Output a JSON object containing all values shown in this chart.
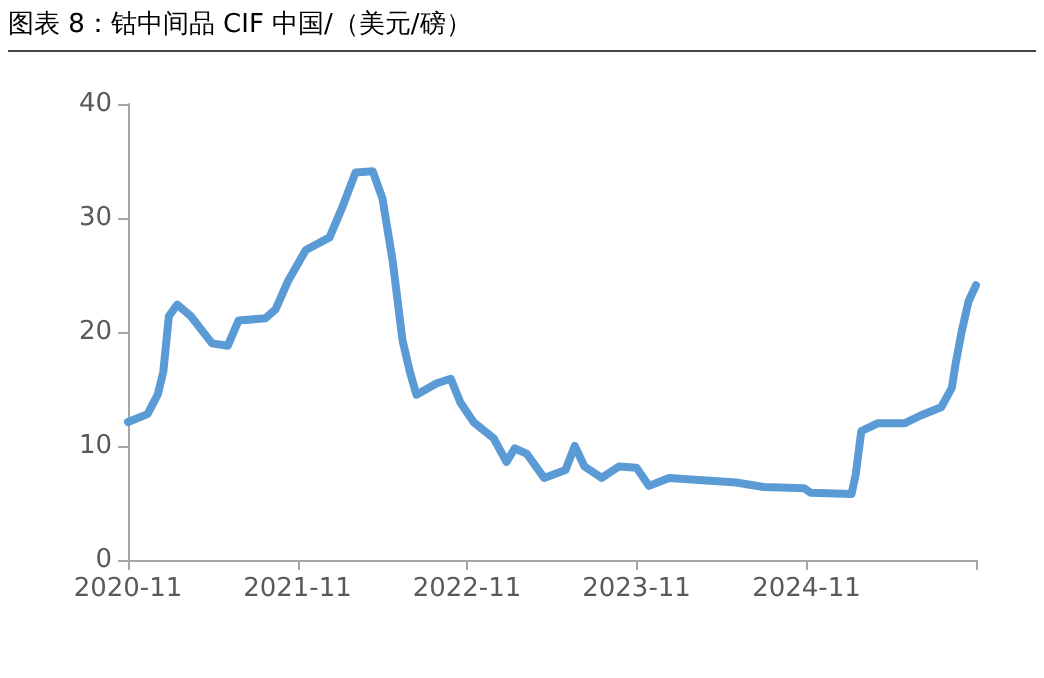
{
  "chart_data": {
    "type": "line",
    "title": "图表 8：钴中间品 CIF 中国/（美元/磅）",
    "x": [
      "2020-11-01",
      "2020-12-13",
      "2021-01-04",
      "2021-01-16",
      "2021-01-28",
      "2021-02-15",
      "2021-03-16",
      "2021-05-01",
      "2021-06-04",
      "2021-06-27",
      "2021-08-24",
      "2021-09-15",
      "2021-10-12",
      "2021-11-19",
      "2022-01-09",
      "2022-02-06",
      "2022-03-06",
      "2022-04-12",
      "2022-05-03",
      "2022-05-25",
      "2022-06-15",
      "2022-07-01",
      "2022-07-15",
      "2022-08-28",
      "2022-09-27",
      "2022-10-18",
      "2022-11-15",
      "2022-12-28",
      "2023-01-25",
      "2023-02-12",
      "2023-03-10",
      "2023-04-16",
      "2023-06-01",
      "2023-06-21",
      "2023-07-12",
      "2023-08-18",
      "2023-09-24",
      "2023-11-01",
      "2023-11-28",
      "2024-01-10",
      "2024-03-22",
      "2024-06-03",
      "2024-08-01",
      "2024-10-27",
      "2024-11-10",
      "2025-02-06",
      "2025-02-15",
      "2025-02-27",
      "2025-04-04",
      "2025-06-01",
      "2025-07-06",
      "2025-08-18",
      "2025-09-10",
      "2025-09-18",
      "2025-10-01",
      "2025-10-16",
      "2025-11-01"
    ],
    "series": [
      {
        "color": "#5b9bd5",
        "values": [
          12.1,
          12.8,
          14.5,
          16.5,
          21.4,
          22.4,
          21.4,
          19,
          18.8,
          21,
          21.2,
          22,
          24.5,
          27.2,
          28.3,
          31,
          34,
          34.1,
          31.7,
          26.2,
          19.3,
          16.5,
          14.5,
          15.5,
          15.9,
          13.8,
          12.1,
          10.7,
          8.6,
          9.8,
          9.3,
          7.2,
          7.9,
          10,
          8.2,
          7.2,
          8.2,
          8.1,
          6.5,
          7.2,
          7,
          6.8,
          6.4,
          6.3,
          5.9,
          5.8,
          7.5,
          11.3,
          12,
          12,
          12.7,
          13.4,
          15.1,
          17.2,
          20,
          22.7,
          24.1
        ]
      }
    ],
    "xlim": [
      "2020-11",
      "2025-11"
    ],
    "xticks": [
      {
        "value": "2020-11",
        "label": "2020-11"
      },
      {
        "value": "2021-11",
        "label": "2021-11"
      },
      {
        "value": "2022-11",
        "label": "2022-11"
      },
      {
        "value": "2023-11",
        "label": "2023-11"
      },
      {
        "value": "2024-11",
        "label": "2024-11"
      },
      {
        "value": "2025-11",
        "label": null
      }
    ],
    "ylim": [
      0,
      40
    ],
    "yticks": [
      0,
      10,
      20,
      30,
      40
    ],
    "grid": false,
    "marker": "none",
    "line_style": "solid"
  }
}
